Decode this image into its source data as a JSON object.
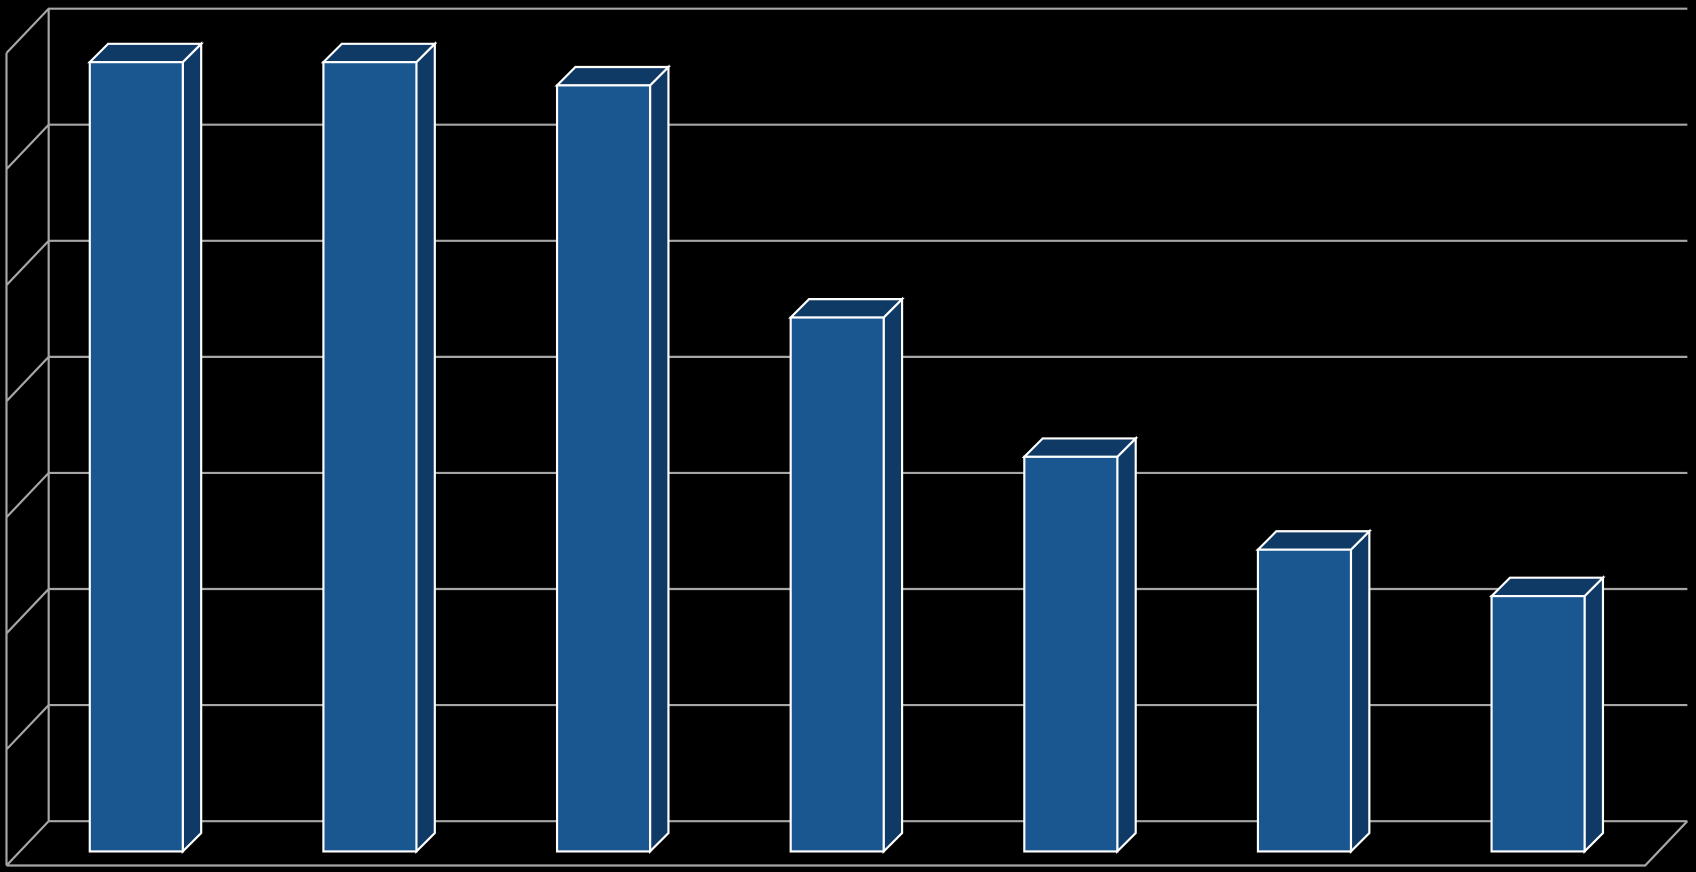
{
  "chart_data": {
    "type": "bar3d",
    "categories": [
      null,
      null,
      null,
      null,
      null,
      null,
      null
    ],
    "values": [
      6.8,
      6.8,
      6.6,
      4.6,
      3.4,
      2.6,
      2.2
    ],
    "color": "#1a568f",
    "ylim": [
      0,
      7
    ],
    "yticks": [
      0,
      1,
      2,
      3,
      4,
      5,
      6,
      7
    ],
    "grid": true
  }
}
